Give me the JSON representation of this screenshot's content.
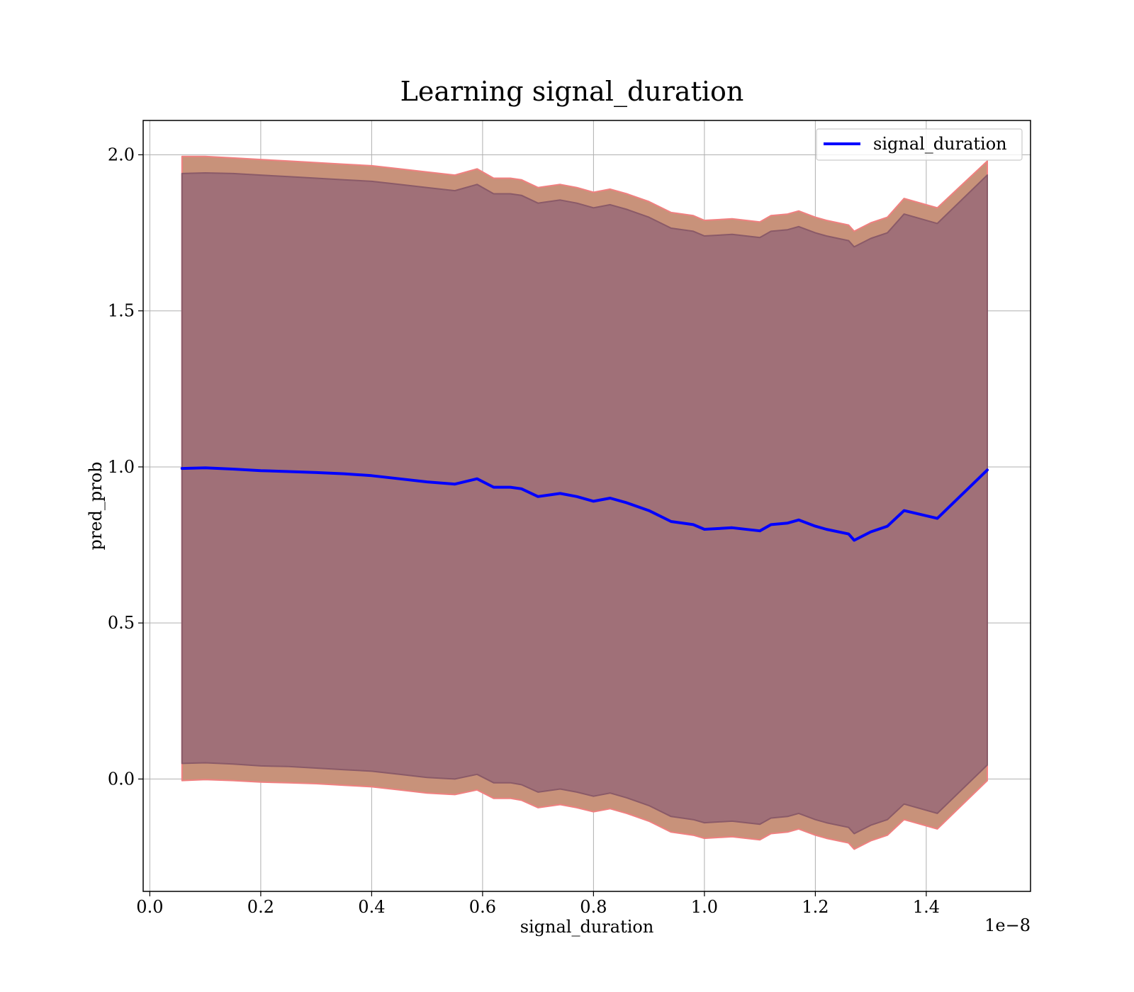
{
  "chart_data": {
    "type": "area",
    "title": "Learning signal_duration",
    "xlabel": "signal_duration",
    "ylabel": "pred_prob",
    "x_offset_label": "1e−8",
    "xlim": [
      -0.012,
      1.588
    ],
    "ylim": [
      -0.36,
      2.11
    ],
    "xticks": [
      0.0,
      0.2,
      0.4,
      0.6,
      0.8,
      1.0,
      1.2,
      1.4
    ],
    "xtick_labels": [
      "0.0",
      "0.2",
      "0.4",
      "0.6",
      "0.8",
      "1.0",
      "1.2",
      "1.4"
    ],
    "yticks": [
      0.0,
      0.5,
      1.0,
      1.5,
      2.0
    ],
    "ytick_labels": [
      "0.0",
      "0.5",
      "1.0",
      "1.5",
      "2.0"
    ],
    "grid": true,
    "legend": {
      "placement": "top-right",
      "entries": [
        "signal_duration"
      ]
    },
    "x": [
      0.058,
      0.1,
      0.15,
      0.2,
      0.25,
      0.3,
      0.35,
      0.4,
      0.45,
      0.5,
      0.55,
      0.59,
      0.62,
      0.65,
      0.67,
      0.7,
      0.74,
      0.77,
      0.8,
      0.83,
      0.86,
      0.9,
      0.94,
      0.98,
      1.0,
      1.05,
      1.1,
      1.12,
      1.15,
      1.17,
      1.2,
      1.22,
      1.26,
      1.27,
      1.3,
      1.33,
      1.36,
      1.42,
      1.51
    ],
    "series": [
      {
        "name": "signal_duration",
        "color": "#0000ff",
        "values": [
          0.995,
          0.997,
          0.993,
          0.988,
          0.985,
          0.982,
          0.978,
          0.972,
          0.962,
          0.952,
          0.945,
          0.962,
          0.935,
          0.935,
          0.93,
          0.905,
          0.915,
          0.905,
          0.89,
          0.9,
          0.885,
          0.86,
          0.825,
          0.815,
          0.8,
          0.805,
          0.795,
          0.815,
          0.82,
          0.83,
          0.81,
          0.8,
          0.785,
          0.765,
          0.792,
          0.81,
          0.86,
          0.835,
          0.99
        ]
      }
    ],
    "bands": [
      {
        "name": "outer_band",
        "color": "#c8927a",
        "edge_color": "#f08080",
        "upper": [
          1.995,
          1.995,
          1.99,
          1.985,
          1.98,
          1.975,
          1.97,
          1.965,
          1.955,
          1.945,
          1.935,
          1.955,
          1.925,
          1.925,
          1.92,
          1.895,
          1.905,
          1.895,
          1.88,
          1.89,
          1.875,
          1.85,
          1.815,
          1.805,
          1.79,
          1.795,
          1.785,
          1.805,
          1.81,
          1.82,
          1.8,
          1.79,
          1.775,
          1.755,
          1.782,
          1.8,
          1.86,
          1.83,
          1.98
        ],
        "lower": [
          -0.005,
          -0.002,
          -0.005,
          -0.01,
          -0.012,
          -0.015,
          -0.02,
          -0.025,
          -0.035,
          -0.045,
          -0.05,
          -0.035,
          -0.062,
          -0.062,
          -0.068,
          -0.092,
          -0.082,
          -0.092,
          -0.105,
          -0.095,
          -0.11,
          -0.135,
          -0.17,
          -0.18,
          -0.19,
          -0.185,
          -0.195,
          -0.175,
          -0.17,
          -0.16,
          -0.18,
          -0.19,
          -0.205,
          -0.225,
          -0.198,
          -0.18,
          -0.13,
          -0.16,
          -0.005
        ]
      },
      {
        "name": "inner_band",
        "color": "#a07078",
        "edge_color": "#8a5a68",
        "upper": [
          1.94,
          1.942,
          1.94,
          1.935,
          1.93,
          1.925,
          1.92,
          1.915,
          1.905,
          1.895,
          1.885,
          1.905,
          1.875,
          1.875,
          1.87,
          1.845,
          1.855,
          1.845,
          1.83,
          1.84,
          1.825,
          1.8,
          1.765,
          1.755,
          1.74,
          1.745,
          1.735,
          1.755,
          1.76,
          1.77,
          1.75,
          1.74,
          1.725,
          1.705,
          1.732,
          1.75,
          1.81,
          1.78,
          1.935
        ],
        "lower": [
          0.05,
          0.052,
          0.048,
          0.042,
          0.04,
          0.035,
          0.03,
          0.025,
          0.015,
          0.005,
          0.0,
          0.015,
          -0.012,
          -0.012,
          -0.018,
          -0.042,
          -0.032,
          -0.042,
          -0.055,
          -0.045,
          -0.06,
          -0.085,
          -0.12,
          -0.13,
          -0.14,
          -0.135,
          -0.145,
          -0.125,
          -0.12,
          -0.11,
          -0.13,
          -0.14,
          -0.155,
          -0.175,
          -0.148,
          -0.13,
          -0.08,
          -0.11,
          0.045
        ]
      }
    ]
  }
}
